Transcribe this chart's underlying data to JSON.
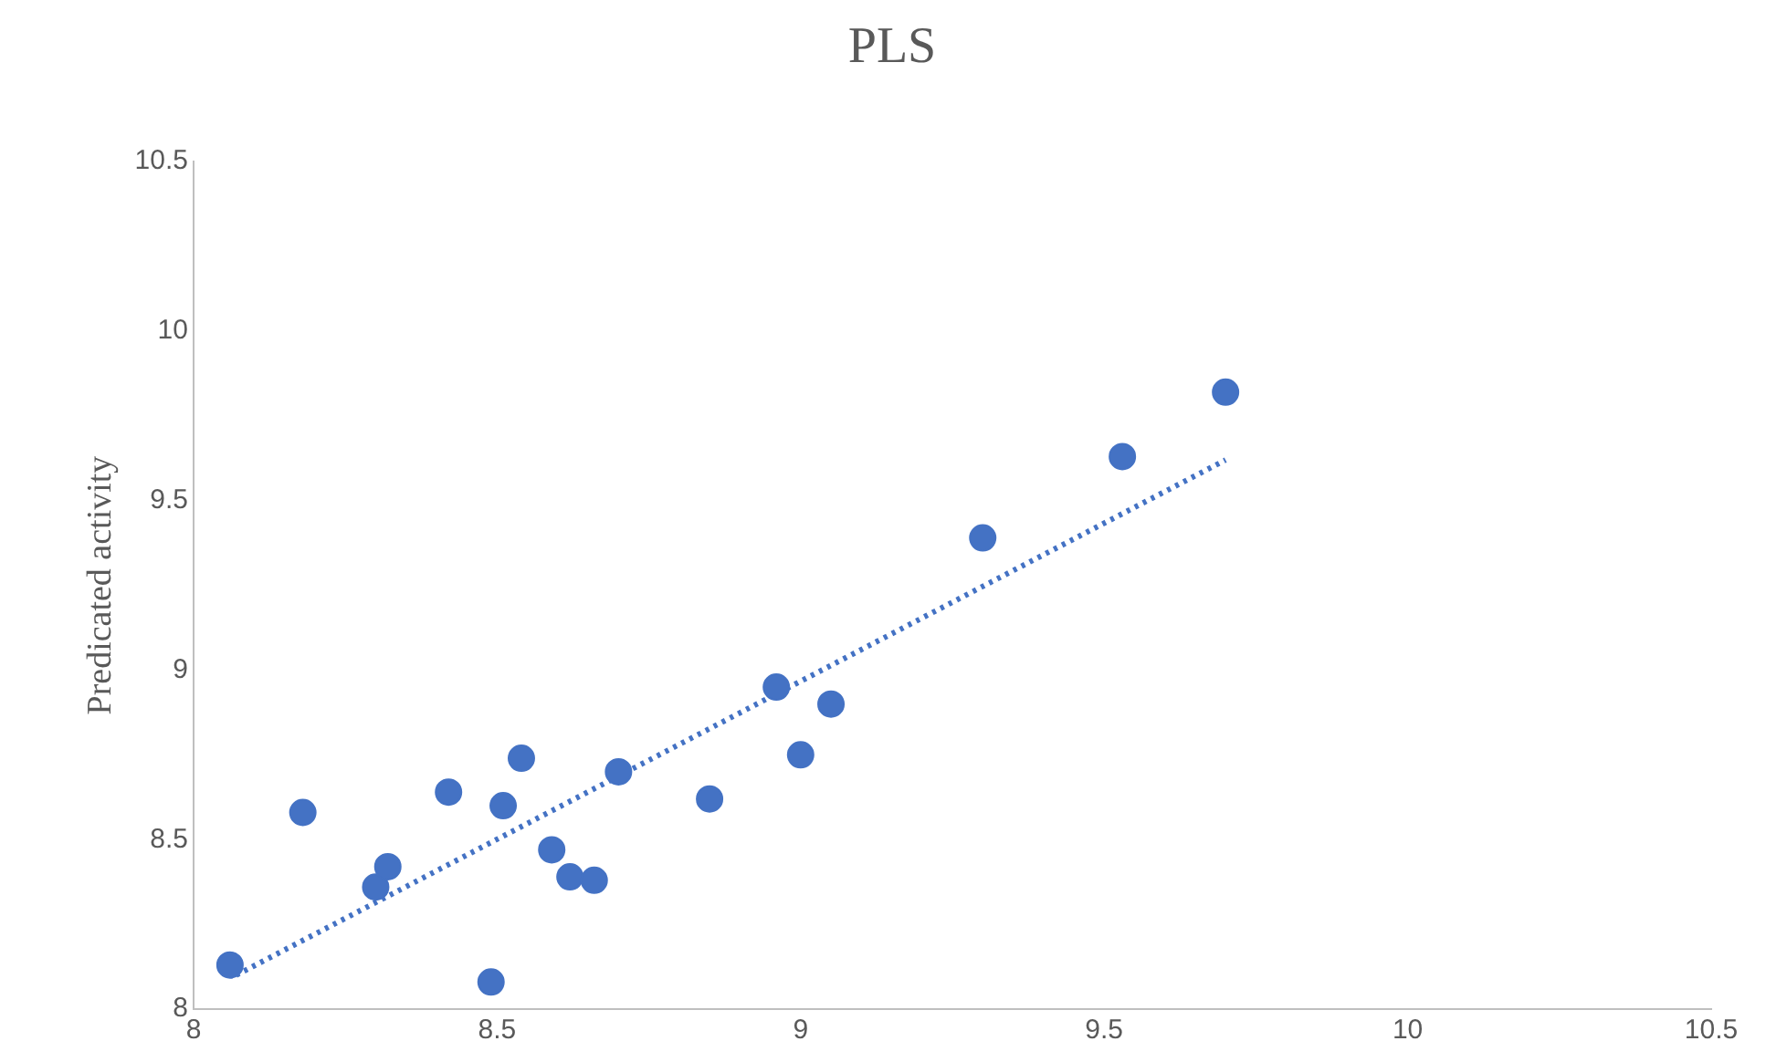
{
  "chart_data": {
    "type": "scatter",
    "title": "PLS",
    "ylabel": "Predicated activity",
    "xlim": [
      8,
      10.5
    ],
    "xticks": [
      8,
      8.5,
      9,
      9.5,
      10,
      10.5
    ],
    "ylim": [
      8,
      10.5
    ],
    "yticks": [
      8,
      8.5,
      9,
      9.5,
      10,
      10.5
    ],
    "grid": false,
    "legend": false,
    "marker": "circle",
    "series": [
      {
        "color": "#4472c4",
        "x": [
          8.06,
          8.18,
          8.3,
          8.32,
          8.42,
          8.49,
          8.51,
          8.54,
          8.59,
          8.62,
          8.66,
          8.7,
          8.85,
          8.96,
          9.0,
          9.05,
          9.3,
          9.53,
          9.7
        ],
        "values": [
          8.13,
          8.58,
          8.36,
          8.42,
          8.64,
          8.08,
          8.6,
          8.74,
          8.47,
          8.39,
          8.38,
          8.7,
          8.62,
          8.95,
          8.75,
          8.9,
          9.39,
          9.63,
          9.82
        ]
      },
      {
        "type": "line",
        "color": "#4472c4",
        "line_style": "dotted",
        "marker": "none",
        "x": [
          8.07,
          9.7
        ],
        "values": [
          8.1,
          9.62
        ]
      }
    ]
  }
}
